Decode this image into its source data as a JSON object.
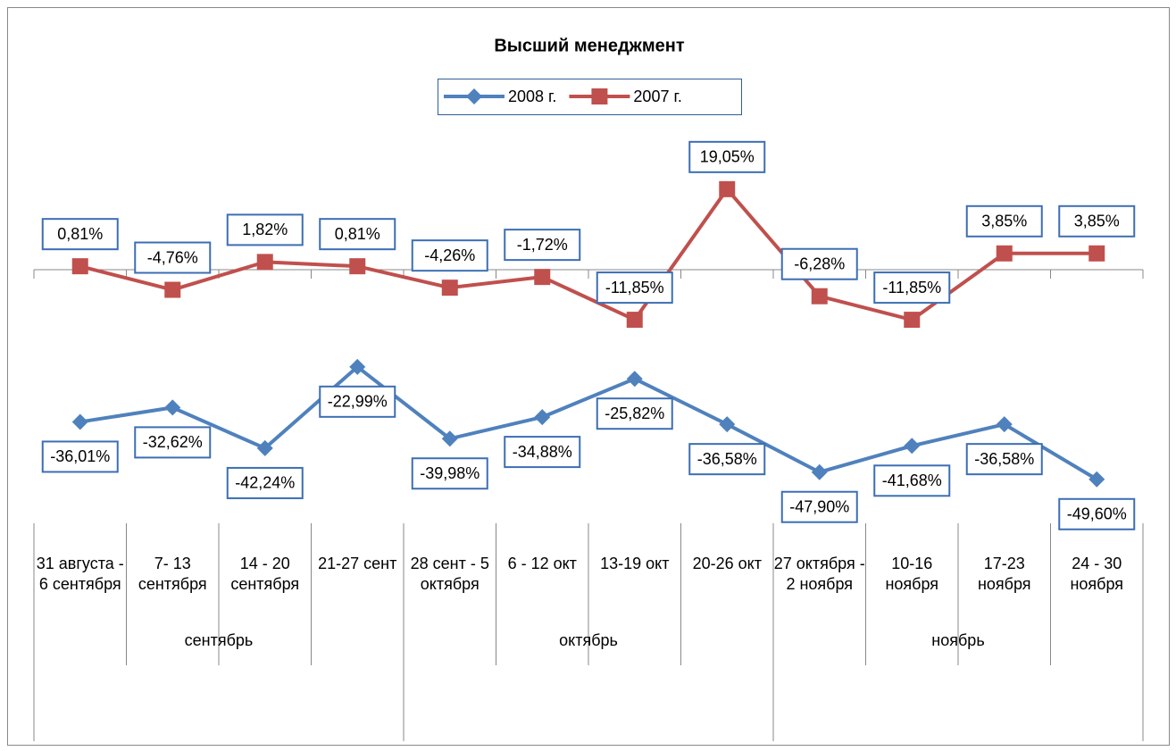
{
  "chart_data": {
    "type": "line",
    "title": "Высший менеджмент",
    "categories": [
      "31 августа - 6 сентября",
      "7- 13 сентября",
      "14 - 20 сентября",
      "21-27 сент",
      "28 сент - 5 октября",
      "6 - 12 окт",
      "13-19 окт",
      "20-26 окт",
      "27 октября - 2 ноября",
      "10-16 ноября",
      "17-23 ноября",
      "24 - 30 ноября"
    ],
    "category_groups": [
      "сентябрь",
      "октябрь",
      "ноябрь"
    ],
    "series": [
      {
        "name": "2008 г.",
        "color": "#4f81bd",
        "marker": "diamond",
        "values": [
          -36.01,
          -32.62,
          -42.24,
          -22.99,
          -39.98,
          -34.88,
          -25.82,
          -36.58,
          -47.9,
          -41.68,
          -36.58,
          -49.6
        ],
        "value_labels": [
          "-36,01%",
          "-32,62%",
          "-42,24%",
          "-22,99%",
          "-39,98%",
          "-34,88%",
          "-25,82%",
          "-36,58%",
          "-47,90%",
          "-41,68%",
          "-36,58%",
          "-49,60%"
        ]
      },
      {
        "name": "2007 г.",
        "color": "#c0504d",
        "marker": "square",
        "values": [
          0.81,
          -4.76,
          1.82,
          0.81,
          -4.26,
          -1.72,
          -11.85,
          19.05,
          -6.28,
          -11.85,
          3.85,
          3.85
        ],
        "value_labels": [
          "0,81%",
          "-4,76%",
          "1,82%",
          "0,81%",
          "-4,26%",
          "-1,72%",
          "-11,85%",
          "19,05%",
          "-6,28%",
          "-11,85%",
          "3,85%",
          "3,85%"
        ]
      }
    ],
    "ylim": [
      -60,
      30
    ],
    "legend": "top"
  }
}
